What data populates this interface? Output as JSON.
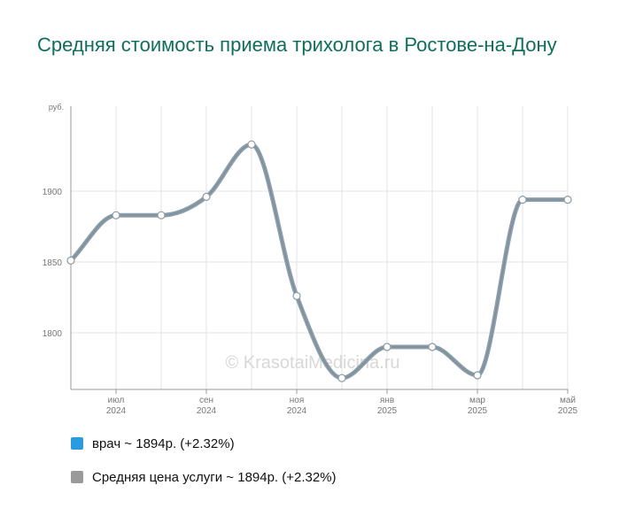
{
  "chart_data": {
    "type": "line",
    "title": "Средняя стоимость приема трихолога в Ростове-на-Дону",
    "ylabel": "руб.",
    "ylim": [
      1760,
      1960
    ],
    "y_ticks": [
      1800,
      1850,
      1900
    ],
    "x_ticks": [
      {
        "month": "июл",
        "year": "2024"
      },
      {
        "month": "сен",
        "year": "2024"
      },
      {
        "month": "ноя",
        "year": "2024"
      },
      {
        "month": "янв",
        "year": "2025"
      },
      {
        "month": "мар",
        "year": "2025"
      },
      {
        "month": "май",
        "year": "2025"
      }
    ],
    "x": [
      "2024-06",
      "2024-07",
      "2024-08",
      "2024-09",
      "2024-10",
      "2024-11",
      "2024-12",
      "2025-01",
      "2025-02",
      "2025-03",
      "2025-04",
      "2025-05"
    ],
    "series": [
      {
        "name": "врач",
        "color": "#2b9be0",
        "values": [
          1851,
          1883,
          1883,
          1896,
          1933,
          1826,
          1768,
          1790,
          1790,
          1770,
          1894,
          1894
        ]
      },
      {
        "name": "Средняя цена услуги",
        "color": "#8fa0ab",
        "values": [
          1851,
          1883,
          1883,
          1896,
          1933,
          1826,
          1768,
          1790,
          1790,
          1770,
          1894,
          1894
        ]
      }
    ],
    "grid": true,
    "legend_position": "bottom",
    "watermark": "© KrasotaiMedicina.ru"
  },
  "legend": [
    {
      "label": "врач ~ 1894р. (+2.32%)",
      "color": "#2b9be0"
    },
    {
      "label": "Средняя цена услуги ~ 1894р. (+2.32%)",
      "color": "#9a9a9a"
    }
  ]
}
